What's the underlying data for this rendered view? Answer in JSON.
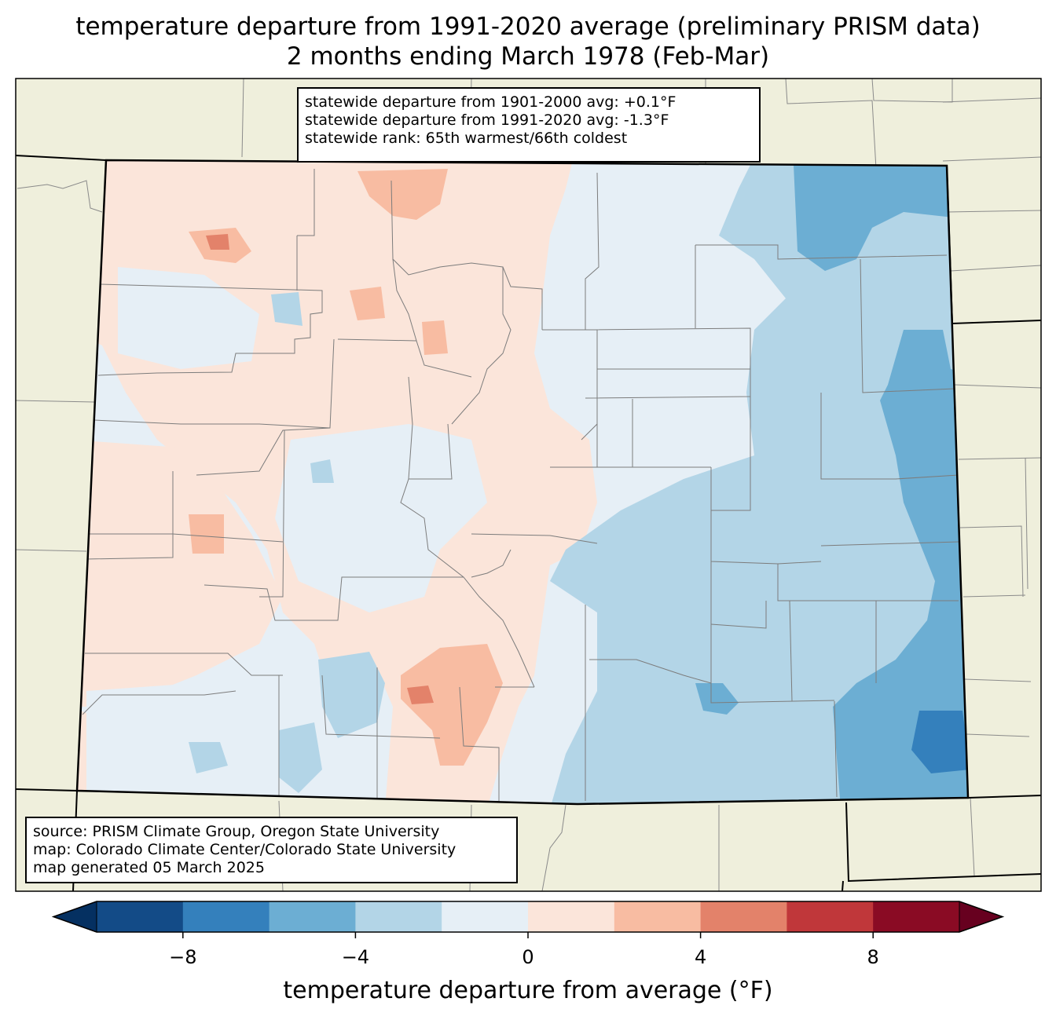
{
  "title": {
    "line1": "temperature departure from 1991-2020 average (preliminary PRISM data)",
    "line2": "2 months ending March 1978 (Feb-Mar)"
  },
  "stats": {
    "line1": "statewide departure from 1901-2000 avg: +0.1°F",
    "line2": "statewide departure from 1991-2020 avg: -1.3°F",
    "line3": "statewide rank: 65th warmest/66th coldest"
  },
  "source": {
    "line1": "source: PRISM Climate Group, Oregon State University",
    "line2": "map: Colorado Climate Center/Colorado State University",
    "line3": "map generated 05 March 2025"
  },
  "colorbar": {
    "label": "temperature departure from average (°F)",
    "ticks": [
      "−8",
      "−4",
      "0",
      "4",
      "8"
    ],
    "bins": [
      -10,
      -8,
      -6,
      -4,
      -2,
      0,
      2,
      4,
      6,
      8,
      10
    ],
    "colors": [
      "#134b87",
      "#3480bc",
      "#6caed3",
      "#b3d5e7",
      "#e6eff6",
      "#fbe5da",
      "#f8bca2",
      "#e3826a",
      "#c0373a",
      "#8a0b24"
    ],
    "under_color": "#053061",
    "over_color": "#67001f"
  },
  "map_colors": {
    "land_outside": "#efefdc",
    "near_zero_cool": "#e6eff6",
    "near_zero_warm": "#fbe5da",
    "cool_2_4": "#b3d5e7",
    "cool_4_6": "#6caed3",
    "cool_6_8": "#3480bc",
    "warm_2_4": "#f8bca2",
    "warm_4_6": "#e3826a"
  }
}
